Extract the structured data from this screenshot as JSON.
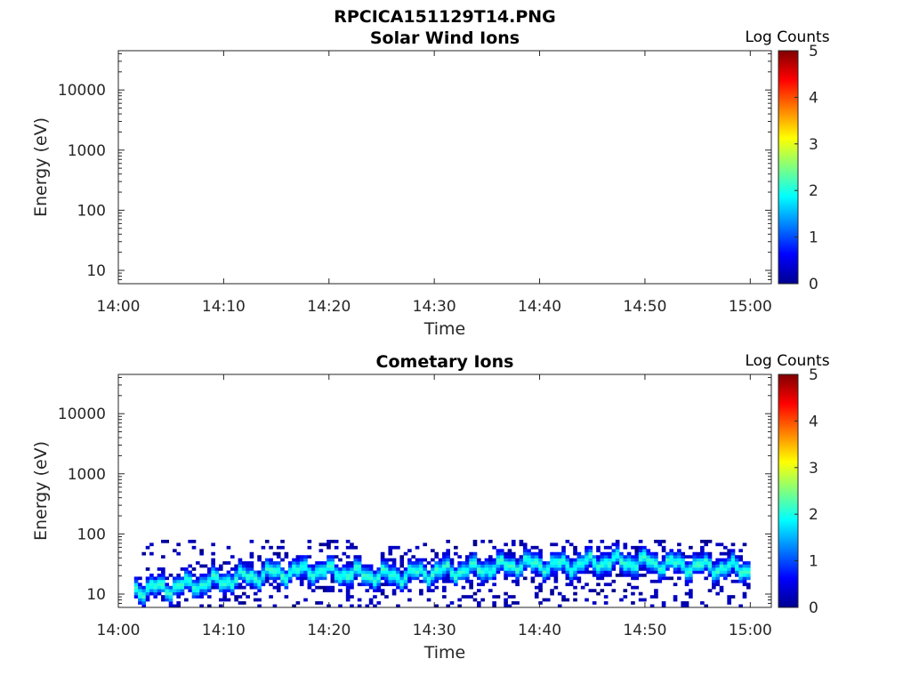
{
  "figure_title": "RPCICA151129T14.PNG",
  "chart_data": [
    {
      "type": "heatmap",
      "title": "Solar Wind Ions",
      "xlabel": "Time",
      "ylabel": "Energy (eV)",
      "x_ticks": [
        "14:00",
        "14:10",
        "14:20",
        "14:30",
        "14:40",
        "14:50",
        "15:00"
      ],
      "x_range_minutes": [
        0,
        62
      ],
      "y_scale": "log",
      "y_ticks": [
        10,
        100,
        1000,
        10000
      ],
      "y_range": [
        6,
        45000
      ],
      "colorbar": {
        "label": "Log Counts",
        "ticks": [
          0,
          1,
          2,
          3,
          4,
          5
        ],
        "range": [
          0,
          5
        ],
        "colormap": "jet"
      },
      "data_present": false,
      "description_of_data": "empty"
    },
    {
      "type": "heatmap",
      "title": "Cometary Ions",
      "xlabel": "Time",
      "ylabel": "Energy (eV)",
      "x_ticks": [
        "14:00",
        "14:10",
        "14:20",
        "14:30",
        "14:40",
        "14:50",
        "15:00"
      ],
      "x_range_minutes": [
        0,
        62
      ],
      "y_scale": "log",
      "y_ticks": [
        10,
        100,
        1000,
        10000
      ],
      "y_range": [
        6,
        45000
      ],
      "colorbar": {
        "label": "Log Counts",
        "ticks": [
          0,
          1,
          2,
          3,
          4,
          5
        ],
        "range": [
          0,
          5
        ],
        "colormap": "jet"
      },
      "data_present": true,
      "data_time_span_minutes": [
        1.5,
        60
      ],
      "energy_range_eV": [
        6,
        80
      ],
      "band_center_eV": [
        [
          1.5,
          12
        ],
        [
          5,
          13
        ],
        [
          10,
          17
        ],
        [
          14,
          22
        ],
        [
          18,
          25
        ],
        [
          22,
          22
        ],
        [
          26,
          20
        ],
        [
          30,
          24
        ],
        [
          34,
          26
        ],
        [
          38,
          32
        ],
        [
          42,
          30
        ],
        [
          46,
          35
        ],
        [
          50,
          34
        ],
        [
          54,
          30
        ],
        [
          58,
          27
        ],
        [
          60,
          26
        ]
      ],
      "band_peak_log_counts": 1.9
    }
  ]
}
